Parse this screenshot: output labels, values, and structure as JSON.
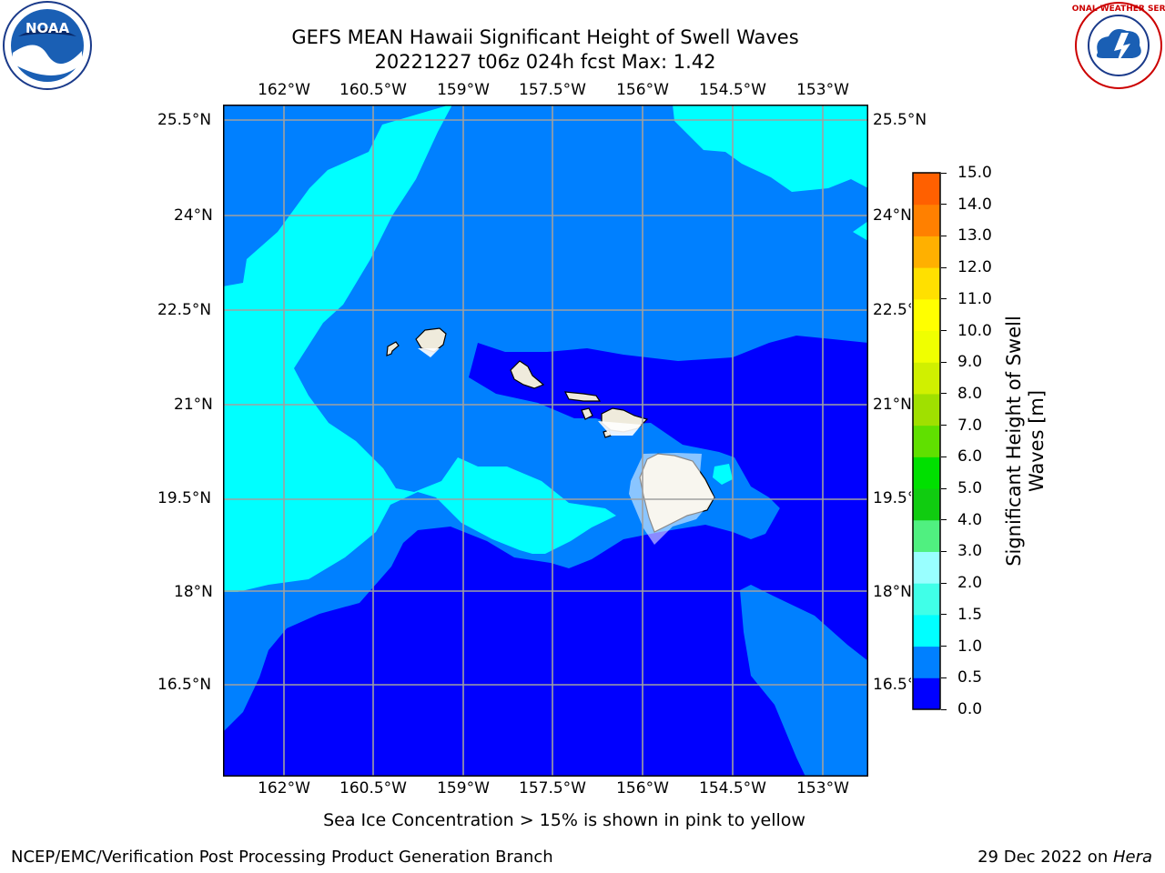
{
  "header": {
    "title_line1": "GEFS MEAN Hawaii Significant Height of Swell Waves",
    "title_line2": "20221227 t06z 024h fcst   Max: 1.42"
  },
  "logos": {
    "left": {
      "name": "NOAA",
      "text": "NOAA"
    },
    "right": {
      "name": "NATIONAL WEATHER SERVICE",
      "text": "NATIONAL WEATHER SERVICE"
    }
  },
  "map": {
    "lon_labels": [
      "162°W",
      "160.5°W",
      "159°W",
      "157.5°W",
      "156°W",
      "154.5°W",
      "153°W"
    ],
    "lat_labels": [
      "25.5°N",
      "24°N",
      "22.5°N",
      "21°N",
      "19.5°N",
      "18°N",
      "16.5°N"
    ],
    "colors": {
      "band_0_05": "#0000ff",
      "band_05_10": "#0080ff",
      "band_10_15": "#00ffff",
      "land": "#efebdc",
      "grid": "#a0a0a0"
    }
  },
  "colorbar": {
    "label_line1": "Significant Height of Swell",
    "label_line2": "Waves [m]",
    "ticks": [
      "15.0",
      "14.0",
      "13.0",
      "12.0",
      "11.0",
      "10.0",
      "9.0",
      "8.0",
      "7.0",
      "6.0",
      "5.0",
      "4.0",
      "3.0",
      "2.0",
      "1.5",
      "1.0",
      "0.5",
      "0.0"
    ],
    "segment_colors": [
      "#0000ff",
      "#0080ff",
      "#00ffff",
      "#40ffe8",
      "#99ffff",
      "#50f080",
      "#10cc10",
      "#00e000",
      "#60e000",
      "#a0e000",
      "#d0f000",
      "#f0ff00",
      "#ffff00",
      "#ffe000",
      "#ffb000",
      "#ff8000",
      "#ff6000",
      "#ff3000",
      "#ff0000"
    ]
  },
  "footer": {
    "note": "Sea Ice Concentration > 15% is shown in pink to yellow",
    "left": "NCEP/EMC/Verification Post Processing Product Generation Branch",
    "right_date": "29 Dec 2022 on ",
    "right_host": "Hera"
  }
}
